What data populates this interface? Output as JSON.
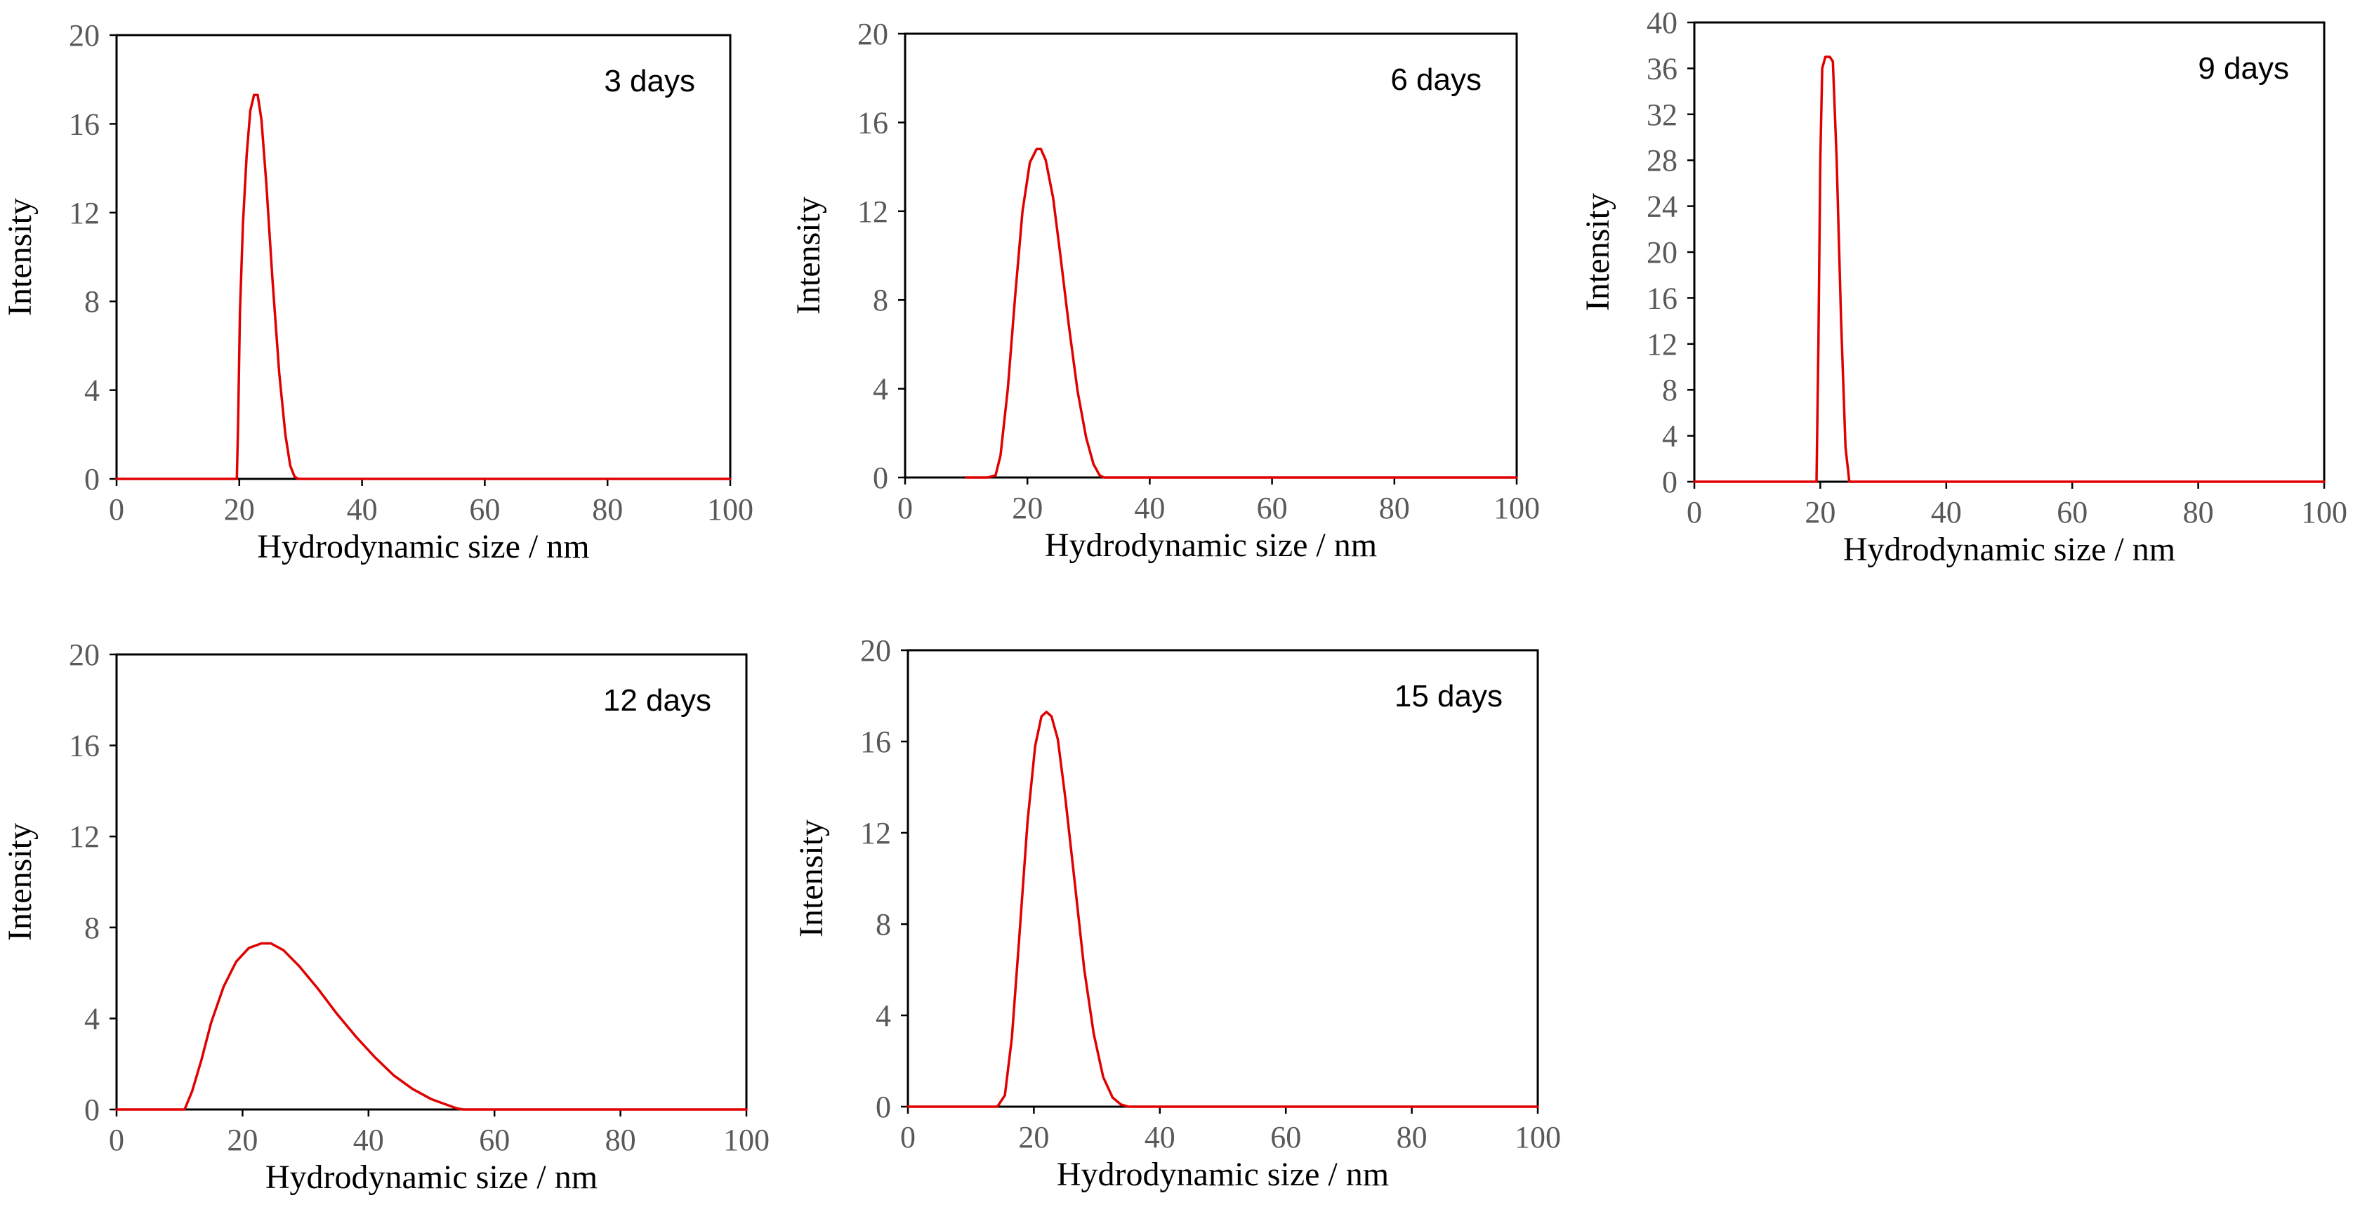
{
  "figure": {
    "series_color": "#e00000",
    "axis_color": "#000000",
    "tick_label_color": "#595959"
  },
  "chart_data": [
    {
      "type": "line",
      "title": "3 days",
      "xlabel": "Hydrodynamic size / nm",
      "ylabel": "Intensity",
      "xlim": [
        0,
        100
      ],
      "ylim": [
        0,
        20
      ],
      "xticks": [
        0,
        20,
        40,
        60,
        80,
        100
      ],
      "yticks": [
        0,
        4,
        8,
        12,
        16,
        20
      ],
      "grid": false,
      "series": [
        {
          "name": "3 days",
          "x": [
            0,
            19.6,
            19.8,
            20.1,
            20.6,
            21.2,
            21.8,
            22.4,
            23.0,
            23.6,
            24.4,
            25.4,
            26.5,
            27.5,
            28.3,
            29.0,
            29.6,
            30.5,
            40,
            60,
            80,
            100
          ],
          "y": [
            0,
            0,
            2.5,
            7.5,
            11.5,
            14.6,
            16.6,
            17.3,
            17.3,
            16.2,
            13.3,
            9.0,
            4.8,
            2.0,
            0.6,
            0.1,
            0,
            0,
            0,
            0,
            0,
            0
          ]
        }
      ]
    },
    {
      "type": "line",
      "title": "6 days",
      "xlabel": "Hydrodynamic size / nm",
      "ylabel": "Intensity",
      "xlim": [
        0,
        100
      ],
      "ylim": [
        0,
        20
      ],
      "xticks": [
        0,
        20,
        40,
        60,
        80,
        100
      ],
      "yticks": [
        0,
        4,
        8,
        12,
        16,
        20
      ],
      "grid": false,
      "series": [
        {
          "name": "6 days",
          "x": [
            10,
            13.5,
            14.8,
            15.6,
            16.8,
            18.0,
            19.2,
            20.4,
            21.5,
            22.2,
            23.0,
            24.2,
            25.4,
            26.8,
            28.2,
            29.6,
            30.8,
            31.8,
            32.5,
            34,
            40,
            60,
            80,
            100
          ],
          "y": [
            0,
            0,
            0.1,
            1.0,
            4.0,
            8.2,
            12.0,
            14.2,
            14.8,
            14.8,
            14.3,
            12.6,
            10.0,
            6.8,
            3.9,
            1.8,
            0.6,
            0.1,
            0,
            0,
            0,
            0,
            0,
            0
          ]
        }
      ]
    },
    {
      "type": "line",
      "title": "9 days",
      "xlabel": "Hydrodynamic size / nm",
      "ylabel": "Intensity",
      "xlim": [
        0,
        100
      ],
      "ylim": [
        0,
        40
      ],
      "xticks": [
        0,
        20,
        40,
        60,
        80,
        100
      ],
      "yticks": [
        0,
        4,
        8,
        12,
        16,
        20,
        24,
        28,
        32,
        36,
        40
      ],
      "grid": false,
      "series": [
        {
          "name": "9 days",
          "x": [
            0,
            19.4,
            19.7,
            20.0,
            20.3,
            20.8,
            21.5,
            22.0,
            22.6,
            23.3,
            24.0,
            24.6,
            26,
            40,
            60,
            80,
            100
          ],
          "y": [
            0,
            0,
            12,
            28,
            36,
            37,
            37,
            36.6,
            28,
            14,
            3,
            0,
            0,
            0,
            0,
            0,
            0
          ]
        }
      ]
    },
    {
      "type": "line",
      "title": "12 days",
      "xlabel": "Hydrodynamic size / nm",
      "ylabel": "Intensity",
      "xlim": [
        0,
        100
      ],
      "ylim": [
        0,
        20
      ],
      "xticks": [
        0,
        20,
        40,
        60,
        80,
        100
      ],
      "yticks": [
        0,
        4,
        8,
        12,
        16,
        20
      ],
      "grid": false,
      "series": [
        {
          "name": "12 days",
          "x": [
            0,
            10.8,
            12.0,
            13.5,
            15.0,
            17.0,
            19.0,
            21.0,
            23.0,
            24.5,
            26.5,
            29.0,
            32.0,
            35.0,
            38.0,
            41.0,
            44.0,
            47.0,
            50.0,
            52.5,
            54.0,
            55,
            60,
            80,
            100
          ],
          "y": [
            0,
            0,
            0.8,
            2.2,
            3.8,
            5.4,
            6.5,
            7.1,
            7.3,
            7.3,
            7.0,
            6.3,
            5.3,
            4.2,
            3.2,
            2.3,
            1.5,
            0.9,
            0.45,
            0.2,
            0.05,
            0,
            0,
            0,
            0
          ]
        }
      ]
    },
    {
      "type": "line",
      "title": "15 days",
      "xlabel": "Hydrodynamic size / nm",
      "ylabel": "Intensity",
      "xlim": [
        0,
        100
      ],
      "ylim": [
        0,
        20
      ],
      "xticks": [
        0,
        20,
        40,
        60,
        80,
        100
      ],
      "yticks": [
        0,
        4,
        8,
        12,
        16,
        20
      ],
      "grid": false,
      "series": [
        {
          "name": "15 days",
          "x": [
            0,
            14.2,
            15.4,
            16.5,
            17.7,
            19.0,
            20.2,
            21.2,
            22.0,
            22.8,
            23.8,
            25.0,
            26.5,
            28.0,
            29.5,
            31.0,
            32.5,
            33.8,
            35.0,
            36,
            40,
            60,
            80,
            100
          ],
          "y": [
            0,
            0,
            0.5,
            3.0,
            7.5,
            12.5,
            15.8,
            17.1,
            17.3,
            17.1,
            16.1,
            13.5,
            9.8,
            6.0,
            3.2,
            1.3,
            0.4,
            0.1,
            0,
            0,
            0,
            0,
            0,
            0
          ]
        }
      ]
    }
  ]
}
